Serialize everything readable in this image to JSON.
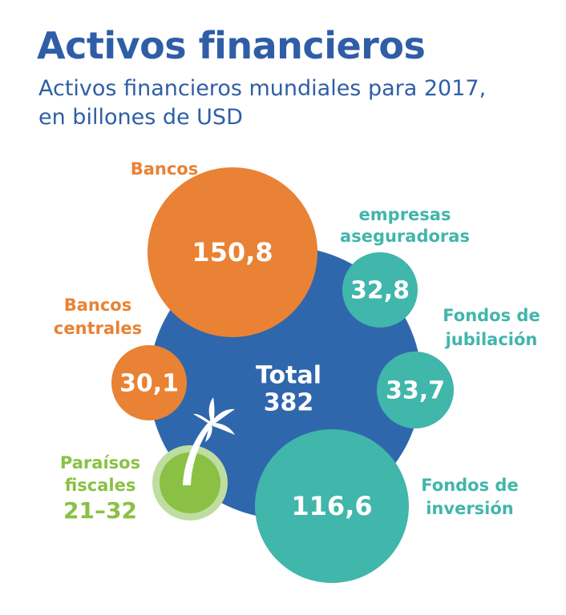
{
  "header": {
    "title": "Activos financieros",
    "subtitle_line1": "Activos financieros mundiales para 2017,",
    "subtitle_line2": "en billones de USD"
  },
  "colors": {
    "title": "#2f5ea6",
    "total": "#2f67ad",
    "orange": "#e98234",
    "teal": "#41b6ab",
    "green": "#8ac044",
    "green_light": "#bfdda0",
    "white": "#ffffff"
  },
  "chart_data": {
    "type": "bubble",
    "total": {
      "label": "Total",
      "value": 382,
      "value_label": "382"
    },
    "bubbles": [
      {
        "id": "bancos",
        "name_lines": [
          "Bancos"
        ],
        "value": 150.8,
        "value_label": "150,8",
        "color": "orange"
      },
      {
        "id": "empresas-aseguradoras",
        "name_lines": [
          "empresas",
          "aseguradoras"
        ],
        "value": 32.8,
        "value_label": "32,8",
        "color": "teal"
      },
      {
        "id": "bancos-centrales",
        "name_lines": [
          "Bancos",
          "centrales"
        ],
        "value": 30.1,
        "value_label": "30,1",
        "color": "orange"
      },
      {
        "id": "fondos-de-jubilacion",
        "name_lines": [
          "Fondos de",
          "jubilación"
        ],
        "value": 33.7,
        "value_label": "33,7",
        "color": "teal"
      },
      {
        "id": "fondos-de-inversion",
        "name_lines": [
          "Fondos de",
          "inversión"
        ],
        "value": 116.6,
        "value_label": "116,6",
        "color": "teal"
      }
    ],
    "range_item": {
      "id": "paraisos-fiscales",
      "name_lines": [
        "Paraísos",
        "fiscales"
      ],
      "range": [
        21,
        32
      ],
      "range_label": "21–32",
      "color": "green",
      "icon": "palm-tree-icon"
    }
  }
}
